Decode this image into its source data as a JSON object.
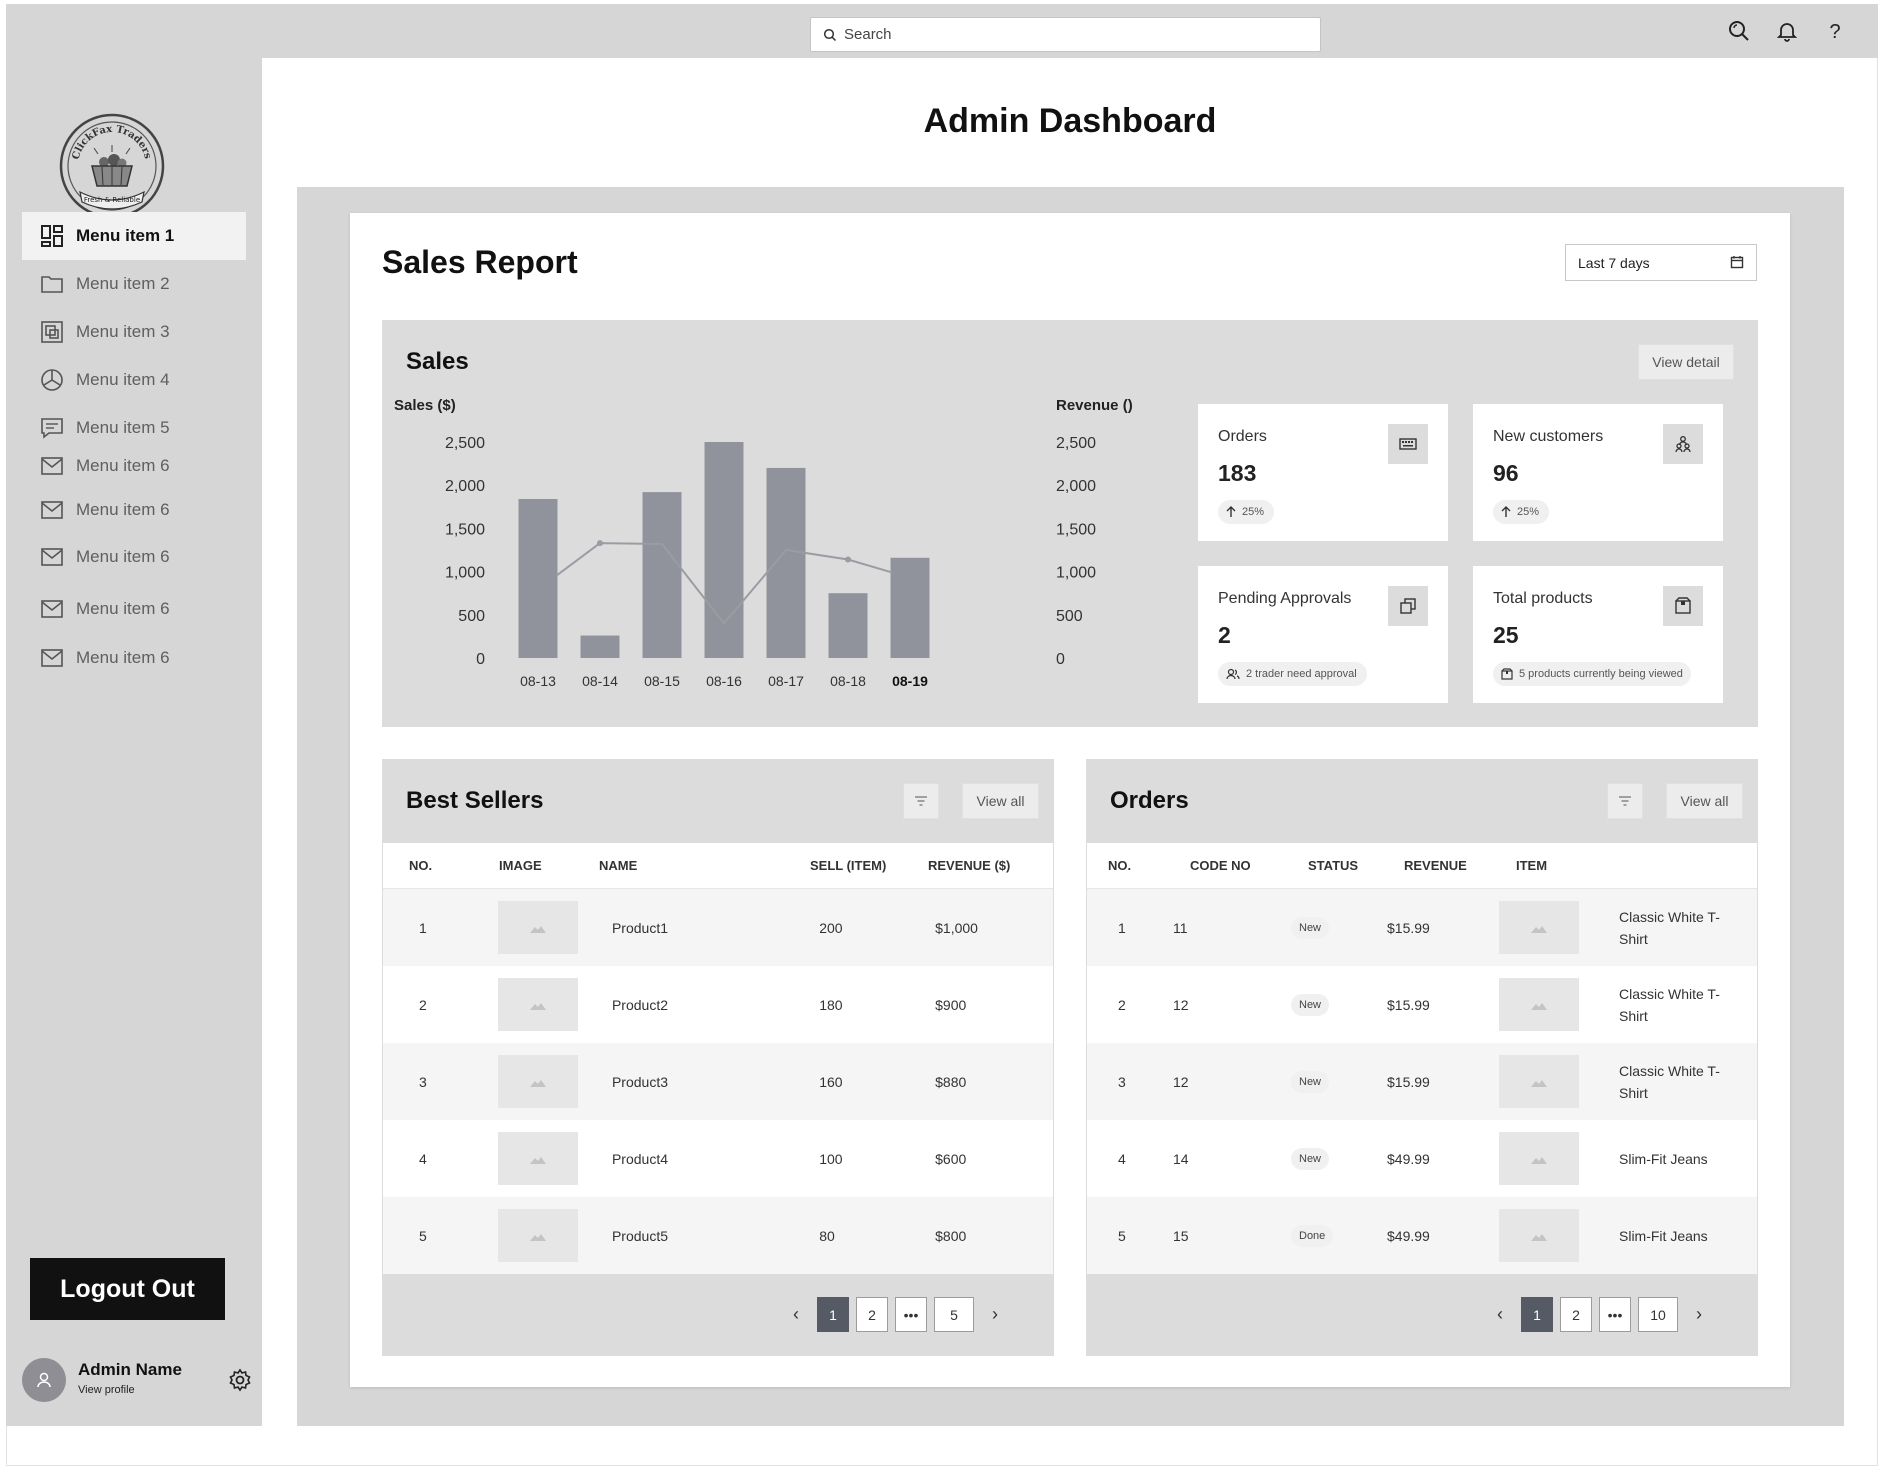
{
  "header": {
    "search_placeholder": "Search",
    "icons": [
      "search-icon",
      "bell-icon",
      "help-icon"
    ]
  },
  "sidebar": {
    "logo_text_top": "ClickFax Traders",
    "logo_text_bottom": "Fresh & Reliable",
    "items": [
      {
        "label": "Menu item 1",
        "icon": "dashboard-icon",
        "active": true
      },
      {
        "label": "Menu item 2",
        "icon": "folder-icon",
        "active": false
      },
      {
        "label": "Menu item 3",
        "icon": "gallery-icon",
        "active": false
      },
      {
        "label": "Menu item 4",
        "icon": "pie-chart-icon",
        "active": false
      },
      {
        "label": "Menu item 5",
        "icon": "chat-icon",
        "active": false
      },
      {
        "label": "Menu item 6",
        "icon": "mail-icon",
        "active": false
      },
      {
        "label": "Menu item 6",
        "icon": "mail-icon",
        "active": false
      },
      {
        "label": "Menu item 6",
        "icon": "mail-icon",
        "active": false
      },
      {
        "label": "Menu item 6",
        "icon": "mail-icon",
        "active": false
      },
      {
        "label": "Menu item 6",
        "icon": "mail-icon",
        "active": false
      }
    ],
    "logout_label": "Logout Out",
    "user": {
      "name": "Admin Name",
      "link": "View profile"
    }
  },
  "page": {
    "title": "Admin Dashboard",
    "report_title": "Sales Report",
    "date_range": "Last 7 days"
  },
  "sales": {
    "title": "Sales",
    "view_detail": "View detail",
    "stats": [
      {
        "label": "Orders",
        "value": "183",
        "chip": "25%",
        "icon": "keyboard-icon",
        "chip_icon": "arrow-up-icon"
      },
      {
        "label": "New customers",
        "value": "96",
        "chip": "25%",
        "icon": "users-icon",
        "chip_icon": "arrow-up-icon"
      },
      {
        "label": "Pending Approvals",
        "value": "2",
        "chip": "2 trader need approval",
        "icon": "copy-icon",
        "chip_icon": "people-icon"
      },
      {
        "label": "Total products",
        "value": "25",
        "chip": "5 products currently being viewed",
        "icon": "package-icon",
        "chip_icon": "package-icon"
      }
    ]
  },
  "chart_data": {
    "type": "bar",
    "categories": [
      "08-13",
      "08-14",
      "08-15",
      "08-16",
      "08-17",
      "08-18",
      "08-19"
    ],
    "highlight_category": "08-19",
    "ylabel": "Sales ($)",
    "y2label": "Revenue ()",
    "ylim": [
      0,
      2500
    ],
    "y2lim": [
      0,
      2500
    ],
    "yticks": [
      "0",
      "500",
      "1,000",
      "1,500",
      "2,000",
      "2,500"
    ],
    "series": [
      {
        "name": "Sales ($)",
        "type": "bar",
        "values": [
          1840,
          260,
          1920,
          2500,
          2200,
          750,
          1160
        ]
      },
      {
        "name": "Revenue ()",
        "type": "line",
        "values": [
          950,
          1330,
          1320,
          400,
          1250,
          1140,
          990
        ]
      }
    ],
    "grid": false,
    "colors": {
      "bar": "#90939b",
      "line": "#9a9ca3"
    }
  },
  "best_sellers": {
    "title": "Best Sellers",
    "view_all": "View all",
    "columns": [
      "NO.",
      "IMAGE",
      "NAME",
      "SELL (ITEM)",
      "REVENUE ($)"
    ],
    "rows": [
      {
        "no": "1",
        "name": "Product1",
        "sell": "200",
        "revenue": "$1,000"
      },
      {
        "no": "2",
        "name": "Product2",
        "sell": "180",
        "revenue": "$900"
      },
      {
        "no": "3",
        "name": "Product3",
        "sell": "160",
        "revenue": "$880"
      },
      {
        "no": "4",
        "name": "Product4",
        "sell": "100",
        "revenue": "$600"
      },
      {
        "no": "5",
        "name": "Product5",
        "sell": "80",
        "revenue": "$800"
      }
    ],
    "pages": [
      "1",
      "2",
      "•••",
      "5"
    ],
    "current_page": "1"
  },
  "orders": {
    "title": "Orders",
    "view_all": "View all",
    "columns": [
      "NO.",
      "CODE NO",
      "STATUS",
      "REVENUE",
      "ITEM"
    ],
    "rows": [
      {
        "no": "1",
        "code": "11",
        "status": "New",
        "revenue": "$15.99",
        "item": "Classic White T-Shirt"
      },
      {
        "no": "2",
        "code": "12",
        "status": "New",
        "revenue": "$15.99",
        "item": "Classic White T-Shirt"
      },
      {
        "no": "3",
        "code": "12",
        "status": "New",
        "revenue": "$15.99",
        "item": "Classic White T-Shirt"
      },
      {
        "no": "4",
        "code": "14",
        "status": "New",
        "revenue": "$49.99",
        "item": "Slim-Fit Jeans"
      },
      {
        "no": "5",
        "code": "15",
        "status": "Done",
        "revenue": "$49.99",
        "item": "Slim-Fit Jeans"
      }
    ],
    "pages": [
      "1",
      "2",
      "•••",
      "10"
    ],
    "current_page": "1"
  }
}
